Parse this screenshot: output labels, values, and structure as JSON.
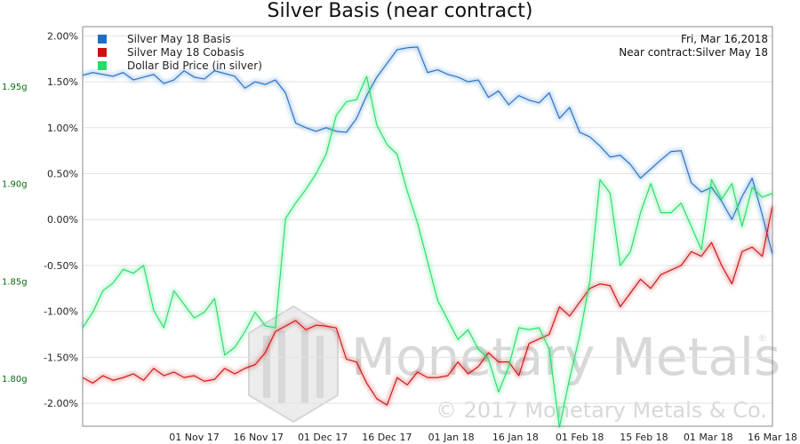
{
  "chart_data": {
    "type": "line",
    "title": "Silver Basis (near contract)",
    "info_lines": [
      "Fri, Mar 16,2018",
      "Near contract:Silver May 18"
    ],
    "watermark": {
      "brand": "Monetary Metals",
      "copyright": "© 2017 Monetary Metals & Co.",
      "registered": "®"
    },
    "x_ticks": [
      "01 Nov 17",
      "16 Nov 17",
      "01 Dec 17",
      "16 Dec 17",
      "01 Jan 18",
      "16 Jan 18",
      "01 Feb 18",
      "15 Feb 18",
      "01 Mar 18",
      "16 Mar 18"
    ],
    "xlim": [
      0,
      136
    ],
    "y_left": {
      "ticks": [
        "2.00%",
        "1.50%",
        "1.00%",
        "0.50%",
        "0.00%",
        "-0.50%",
        "-1.00%",
        "-1.50%",
        "-2.00%"
      ],
      "values": [
        2.0,
        1.5,
        1.0,
        0.5,
        0.0,
        -0.5,
        -1.0,
        -1.5,
        -2.0
      ],
      "range": [
        -2.25,
        2.1
      ]
    },
    "y_right": {
      "ticks": [
        "1.95g",
        "1.90g",
        "1.85g",
        "1.80g"
      ],
      "values": [
        1.95,
        1.9,
        1.85,
        1.8
      ],
      "range": [
        1.7755,
        1.9805
      ]
    },
    "legend": [
      {
        "name": "Silver May 18 Basis",
        "color": "#1f6fc4"
      },
      {
        "name": "Silver May 18 Cobasis",
        "color": "#cc1111"
      },
      {
        "name": "Dollar Bid Price (in silver)",
        "color": "#22dd66"
      }
    ],
    "series": [
      {
        "name": "Silver May 18 Basis",
        "axis": "left",
        "color": "#1f6fc4",
        "x": [
          0,
          2,
          4,
          6,
          8,
          10,
          12,
          14,
          16,
          18,
          20,
          22,
          24,
          26,
          28,
          30,
          32,
          34,
          36,
          38,
          40,
          42,
          44,
          46,
          48,
          50,
          52,
          54,
          56,
          58,
          60,
          62,
          64,
          66,
          68,
          70,
          72,
          74,
          76,
          78,
          80,
          82,
          84,
          86,
          88,
          90,
          92,
          94,
          96,
          98,
          100,
          102,
          104,
          106,
          108,
          110,
          112,
          114,
          116,
          118,
          120,
          122,
          124,
          126,
          128,
          130,
          132,
          134,
          136
        ],
        "values": [
          1.57,
          1.6,
          1.58,
          1.56,
          1.6,
          1.52,
          1.55,
          1.58,
          1.48,
          1.52,
          1.62,
          1.55,
          1.53,
          1.62,
          1.59,
          1.56,
          1.43,
          1.5,
          1.47,
          1.52,
          1.38,
          1.05,
          1.0,
          0.96,
          1.0,
          0.96,
          0.95,
          1.1,
          1.35,
          1.55,
          1.7,
          1.85,
          1.87,
          1.88,
          1.6,
          1.63,
          1.58,
          1.55,
          1.5,
          1.52,
          1.33,
          1.4,
          1.25,
          1.35,
          1.3,
          1.27,
          1.38,
          1.1,
          1.22,
          0.95,
          0.9,
          0.8,
          0.68,
          0.7,
          0.6,
          0.45,
          0.55,
          0.65,
          0.74,
          0.75,
          0.4,
          0.3,
          0.35,
          0.2,
          0.0,
          0.25,
          0.45,
          0.05,
          -0.38
        ]
      },
      {
        "name": "Silver May 18 Cobasis",
        "axis": "left",
        "color": "#cc1111",
        "x": [
          0,
          2,
          4,
          6,
          8,
          10,
          12,
          14,
          16,
          18,
          20,
          22,
          24,
          26,
          28,
          30,
          32,
          34,
          36,
          38,
          40,
          42,
          44,
          46,
          48,
          50,
          52,
          54,
          56,
          58,
          60,
          62,
          64,
          66,
          68,
          70,
          72,
          74,
          76,
          78,
          80,
          82,
          84,
          86,
          88,
          90,
          92,
          94,
          96,
          98,
          100,
          102,
          104,
          106,
          108,
          110,
          112,
          114,
          116,
          118,
          120,
          122,
          124,
          126,
          128,
          130,
          132,
          134,
          136
        ],
        "values": [
          -1.72,
          -1.78,
          -1.7,
          -1.75,
          -1.72,
          -1.68,
          -1.75,
          -1.62,
          -1.7,
          -1.66,
          -1.72,
          -1.7,
          -1.76,
          -1.74,
          -1.62,
          -1.68,
          -1.62,
          -1.58,
          -1.45,
          -1.22,
          -1.16,
          -1.1,
          -1.2,
          -1.15,
          -1.16,
          -1.18,
          -1.52,
          -1.55,
          -1.78,
          -1.95,
          -2.02,
          -1.72,
          -1.8,
          -1.66,
          -1.72,
          -1.72,
          -1.7,
          -1.55,
          -1.68,
          -1.6,
          -1.45,
          -1.55,
          -1.55,
          -1.7,
          -1.35,
          -1.3,
          -1.25,
          -0.95,
          -1.05,
          -0.9,
          -0.75,
          -0.7,
          -0.72,
          -0.95,
          -0.8,
          -0.65,
          -0.75,
          -0.6,
          -0.55,
          -0.5,
          -0.35,
          -0.4,
          -0.25,
          -0.5,
          -0.7,
          -0.35,
          -0.3,
          -0.4,
          0.15
        ]
      },
      {
        "name": "Dollar Bid Price (in silver)",
        "axis": "right",
        "color": "#22dd66",
        "x": [
          0,
          2,
          4,
          6,
          8,
          10,
          12,
          14,
          16,
          18,
          20,
          22,
          24,
          26,
          28,
          30,
          32,
          34,
          36,
          38,
          40,
          42,
          44,
          46,
          48,
          50,
          52,
          54,
          56,
          58,
          60,
          62,
          64,
          66,
          68,
          70,
          72,
          74,
          76,
          78,
          80,
          82,
          84,
          86,
          88,
          90,
          92,
          94,
          96,
          98,
          100,
          102,
          104,
          106,
          108,
          110,
          112,
          114,
          116,
          118,
          120,
          122,
          124,
          126,
          128,
          130,
          132,
          134,
          136
        ],
        "values": [
          1.826,
          1.834,
          1.845,
          1.849,
          1.856,
          1.854,
          1.858,
          1.835,
          1.826,
          1.845,
          1.838,
          1.831,
          1.834,
          1.841,
          1.812,
          1.816,
          1.824,
          1.834,
          1.827,
          1.826,
          1.882,
          1.89,
          1.897,
          1.905,
          1.915,
          1.935,
          1.942,
          1.943,
          1.955,
          1.93,
          1.92,
          1.915,
          1.896,
          1.88,
          1.86,
          1.84,
          1.83,
          1.82,
          1.825,
          1.815,
          1.81,
          1.793,
          1.806,
          1.826,
          1.825,
          1.826,
          1.815,
          1.775,
          1.8,
          1.822,
          1.85,
          1.902,
          1.895,
          1.858,
          1.865,
          1.885,
          1.9,
          1.885,
          1.885,
          1.89,
          1.878,
          1.866,
          1.902,
          1.892,
          1.9,
          1.878,
          1.898,
          1.893,
          1.895
        ]
      }
    ]
  }
}
